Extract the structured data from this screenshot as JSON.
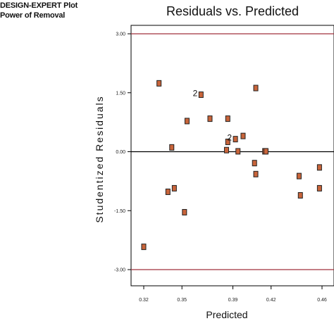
{
  "header": {
    "line1": "DESIGN-EXPERT Plot",
    "line2": "Power of Removal"
  },
  "chart_data": {
    "type": "scatter",
    "title": "Residuals vs. Predicted",
    "xlabel": "Predicted",
    "ylabel": "Studentized Residuals",
    "xlim": [
      0.32,
      0.46
    ],
    "ylim": [
      -3.0,
      3.0
    ],
    "x_ticks": [
      0.32,
      0.35,
      0.39,
      0.42,
      0.46
    ],
    "x_tick_labels": [
      "0.32",
      "0.35",
      "0.39",
      "0.42",
      "0.46"
    ],
    "y_ticks": [
      3.0,
      1.5,
      0.0,
      -1.5,
      -3.0
    ],
    "y_tick_labels": [
      "3.00",
      "1.50",
      "0.00",
      "-1.50",
      "-3.00"
    ],
    "reference_lines": [
      {
        "y": 3.0,
        "color": "#a0323c"
      },
      {
        "y": 0.0,
        "color": "#000000"
      },
      {
        "y": -3.0,
        "color": "#a0323c"
      }
    ],
    "grid": false,
    "series": [
      {
        "marker_color": "#c8643a",
        "points": [
          {
            "x": 0.32,
            "y": -2.42
          },
          {
            "x": 0.332,
            "y": 1.74
          },
          {
            "x": 0.339,
            "y": -1.02
          },
          {
            "x": 0.342,
            "y": 0.11
          },
          {
            "x": 0.344,
            "y": -0.93
          },
          {
            "x": 0.352,
            "y": -1.54
          },
          {
            "x": 0.354,
            "y": 0.78
          },
          {
            "x": 0.365,
            "y": 1.45,
            "label": "2"
          },
          {
            "x": 0.372,
            "y": 0.84
          },
          {
            "x": 0.385,
            "y": 0.04
          },
          {
            "x": 0.386,
            "y": 0.84
          },
          {
            "x": 0.386,
            "y": 0.25
          },
          {
            "x": 0.392,
            "y": 0.32,
            "label": "2"
          },
          {
            "x": 0.394,
            "y": 0.01
          },
          {
            "x": 0.398,
            "y": 0.4
          },
          {
            "x": 0.407,
            "y": -0.29
          },
          {
            "x": 0.408,
            "y": 1.62
          },
          {
            "x": 0.408,
            "y": -0.57
          },
          {
            "x": 0.415,
            "y": 0.01
          },
          {
            "x": 0.416,
            "y": 0.01
          },
          {
            "x": 0.442,
            "y": -0.62
          },
          {
            "x": 0.443,
            "y": -1.11
          },
          {
            "x": 0.458,
            "y": -0.4
          },
          {
            "x": 0.458,
            "y": -0.93
          }
        ]
      }
    ]
  }
}
